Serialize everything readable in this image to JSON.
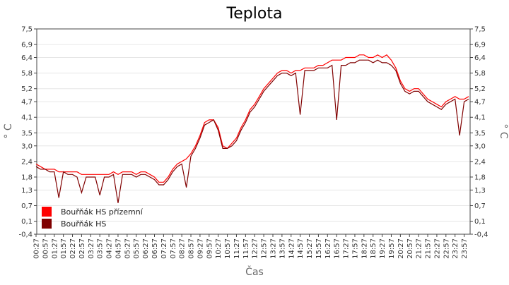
{
  "chart_data": {
    "type": "line",
    "title": "Teplota",
    "x_label": "Čas",
    "y_label": "° C",
    "y2_label": "° C",
    "categories": [
      "00:27",
      null,
      "00:57",
      null,
      "01:27",
      null,
      "01:57",
      null,
      "02:27",
      null,
      "02:57",
      null,
      "03:27",
      null,
      "03:57",
      null,
      "04:27",
      null,
      "04:57",
      null,
      "05:27",
      null,
      "05:57",
      null,
      "06:27",
      null,
      "06:57",
      null,
      "07:27",
      null,
      "07:57",
      null,
      "08:27",
      null,
      "08:57",
      null,
      "09:27",
      null,
      "09:57",
      null,
      "10:27",
      null,
      "10:57",
      null,
      "11:27",
      null,
      "11:57",
      null,
      "12:27",
      null,
      "12:57",
      null,
      "13:27",
      null,
      "13:57",
      null,
      "14:27",
      null,
      "14:57",
      null,
      "15:27",
      null,
      "15:57",
      null,
      "16:27",
      null,
      "16:57",
      null,
      "17:27",
      null,
      "17:57",
      null,
      "18:27",
      null,
      "18:57",
      null,
      "19:27",
      null,
      "19:57",
      null,
      "20:27",
      null,
      "20:57",
      null,
      "21:27",
      null,
      "21:57",
      null,
      "22:27",
      null,
      "22:57",
      null,
      "23:27",
      null,
      "23:57",
      null
    ],
    "series": [
      {
        "name": "Bouřňák HS přízemní",
        "color": "#ff0000",
        "values": [
          2.3,
          2.2,
          2.1,
          2.1,
          2.1,
          2.0,
          2.0,
          2.0,
          2.0,
          2.0,
          1.9,
          1.9,
          1.9,
          1.9,
          1.9,
          1.9,
          1.9,
          2.0,
          1.9,
          2.0,
          2.0,
          2.0,
          1.9,
          2.0,
          2.0,
          1.9,
          1.8,
          1.6,
          1.6,
          1.8,
          2.1,
          2.3,
          2.4,
          2.5,
          2.7,
          3.0,
          3.4,
          3.9,
          4.0,
          4.0,
          3.7,
          3.0,
          2.9,
          3.1,
          3.3,
          3.7,
          4.0,
          4.4,
          4.6,
          4.9,
          5.2,
          5.4,
          5.6,
          5.8,
          5.9,
          5.9,
          5.8,
          5.9,
          5.9,
          6.0,
          6.0,
          6.0,
          6.1,
          6.1,
          6.2,
          6.3,
          6.3,
          6.3,
          6.4,
          6.4,
          6.4,
          6.5,
          6.5,
          6.4,
          6.4,
          6.5,
          6.4,
          6.5,
          6.3,
          6.0,
          5.5,
          5.2,
          5.1,
          5.2,
          5.2,
          5.0,
          4.8,
          4.7,
          4.6,
          4.5,
          4.7,
          4.8,
          4.9,
          4.8,
          4.8,
          4.9
        ]
      },
      {
        "name": "Bouřňák HS",
        "color": "#800000",
        "values": [
          2.2,
          2.1,
          2.1,
          2.0,
          2.0,
          1.0,
          2.0,
          1.9,
          1.9,
          1.8,
          1.2,
          1.8,
          1.8,
          1.8,
          1.1,
          1.8,
          1.8,
          1.9,
          0.8,
          1.9,
          1.9,
          1.9,
          1.8,
          1.9,
          1.9,
          1.8,
          1.7,
          1.5,
          1.5,
          1.7,
          2.0,
          2.2,
          2.3,
          1.4,
          2.6,
          2.9,
          3.3,
          3.8,
          3.9,
          4.0,
          3.6,
          2.9,
          2.9,
          3.0,
          3.2,
          3.6,
          3.9,
          4.3,
          4.5,
          4.8,
          5.1,
          5.3,
          5.5,
          5.7,
          5.8,
          5.8,
          5.7,
          5.8,
          4.2,
          5.9,
          5.9,
          5.9,
          6.0,
          6.0,
          6.0,
          6.1,
          4.0,
          6.1,
          6.1,
          6.2,
          6.2,
          6.3,
          6.3,
          6.3,
          6.2,
          6.3,
          6.2,
          6.2,
          6.1,
          5.9,
          5.4,
          5.1,
          5.0,
          5.1,
          5.1,
          4.9,
          4.7,
          4.6,
          4.5,
          4.4,
          4.6,
          4.7,
          4.8,
          3.4,
          4.7,
          4.8
        ]
      }
    ],
    "ylim": [
      -0.4,
      7.5
    ],
    "yticks": [
      {
        "value": -0.4,
        "label": "-0,4"
      },
      {
        "value": 0.1,
        "label": "0,1"
      },
      {
        "value": 0.7,
        "label": "0,7"
      },
      {
        "value": 1.3,
        "label": "1,3"
      },
      {
        "value": 1.8,
        "label": "1,8"
      },
      {
        "value": 2.4,
        "label": "2,4"
      },
      {
        "value": 3.0,
        "label": "3,0"
      },
      {
        "value": 3.5,
        "label": "3,5"
      },
      {
        "value": 4.1,
        "label": "4,1"
      },
      {
        "value": 4.7,
        "label": "4,7"
      },
      {
        "value": 5.2,
        "label": "5,2"
      },
      {
        "value": 5.8,
        "label": "5,8"
      },
      {
        "value": 6.4,
        "label": "6,4"
      },
      {
        "value": 6.9,
        "label": "6,9"
      },
      {
        "value": 7.5,
        "label": "7,5"
      }
    ],
    "y2lim": [
      -0.4,
      7.5
    ],
    "y2ticks": [
      {
        "value": -0.4,
        "label": "-0,4"
      },
      {
        "value": 0.1,
        "label": "0,1"
      },
      {
        "value": 0.7,
        "label": "0,7"
      },
      {
        "value": 1.3,
        "label": "1,3"
      },
      {
        "value": 1.8,
        "label": "1,8"
      },
      {
        "value": 2.4,
        "label": "2,4"
      },
      {
        "value": 3.0,
        "label": "3,0"
      },
      {
        "value": 3.5,
        "label": "3,5"
      },
      {
        "value": 4.1,
        "label": "4,1"
      },
      {
        "value": 4.7,
        "label": "4,7"
      },
      {
        "value": 5.2,
        "label": "5,2"
      },
      {
        "value": 5.8,
        "label": "5,8"
      },
      {
        "value": 6.4,
        "label": "6,4"
      },
      {
        "value": 6.9,
        "label": "6,9"
      },
      {
        "value": 7.5,
        "label": "7,5"
      }
    ],
    "grid": true,
    "legend": "lower left"
  }
}
